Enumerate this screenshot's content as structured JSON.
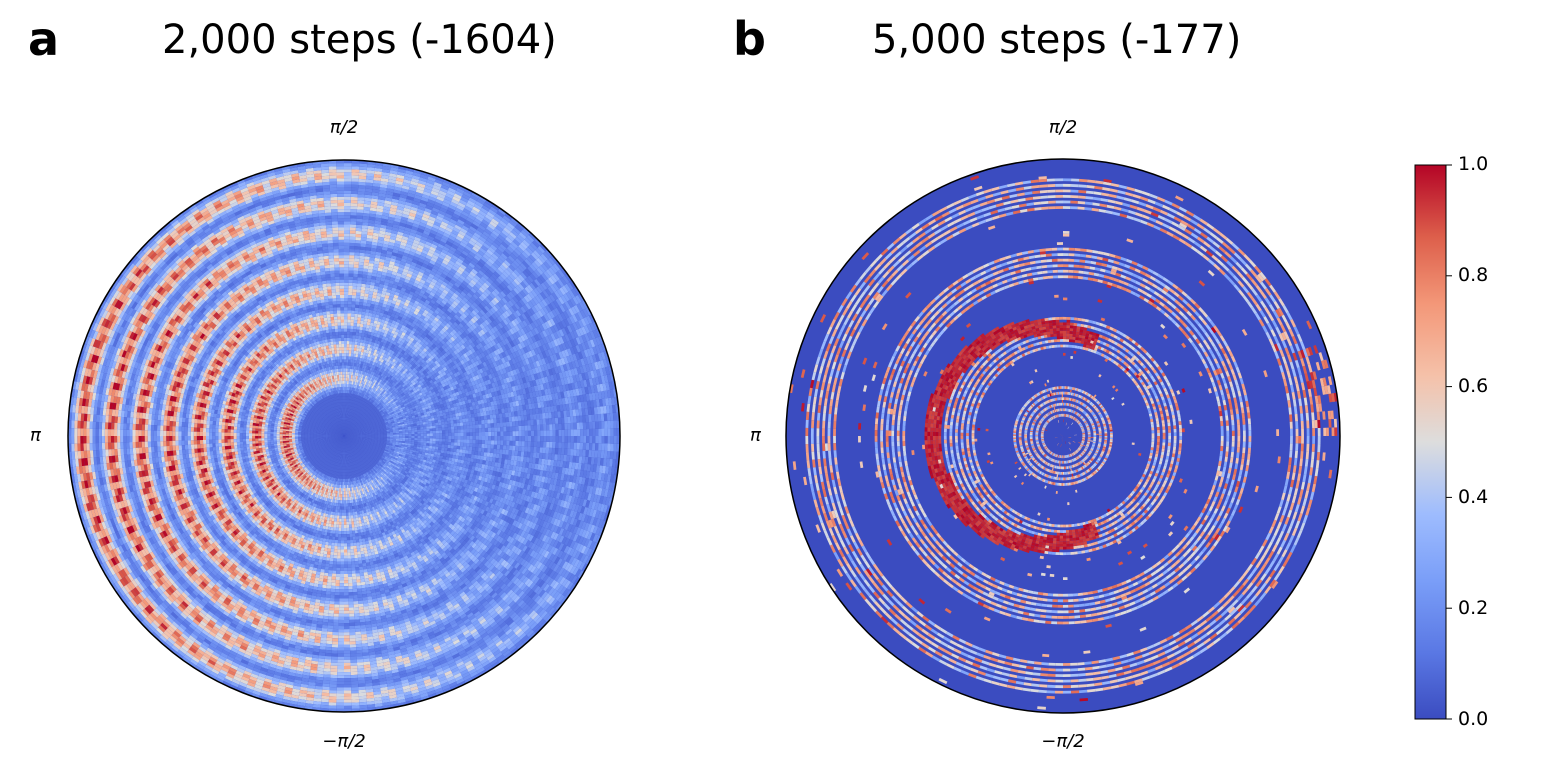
{
  "chart_data": [
    {
      "type": "heatmap",
      "subtype": "polar",
      "panel_label": "a",
      "title": "2,000 steps (-1604)",
      "theta_tick_labels": {
        "top": "π/2",
        "left": "π",
        "bottom": "−π/2"
      },
      "color_range": [
        0.0,
        1.0
      ],
      "colormap": "coolwarm",
      "pattern": "concentric rings with fine angular oscillation; red-heavy on the left half, central low-value disc"
    },
    {
      "type": "heatmap",
      "subtype": "polar",
      "panel_label": "b",
      "title": "5,000 steps (-177)",
      "theta_tick_labels": {
        "top": "π/2",
        "left": "π",
        "bottom": "−π/2"
      },
      "color_range": [
        0.0,
        1.0
      ],
      "colormap": "coolwarm",
      "pattern": "mostly low values with thin concentric rings; strong red ring left of center"
    }
  ],
  "colorbar": {
    "ticks": [
      "0.0",
      "0.2",
      "0.4",
      "0.6",
      "0.8",
      "1.0"
    ],
    "colors": {
      "low": "#3b4cc0",
      "mid": "#dddddd",
      "high": "#b40426"
    }
  }
}
